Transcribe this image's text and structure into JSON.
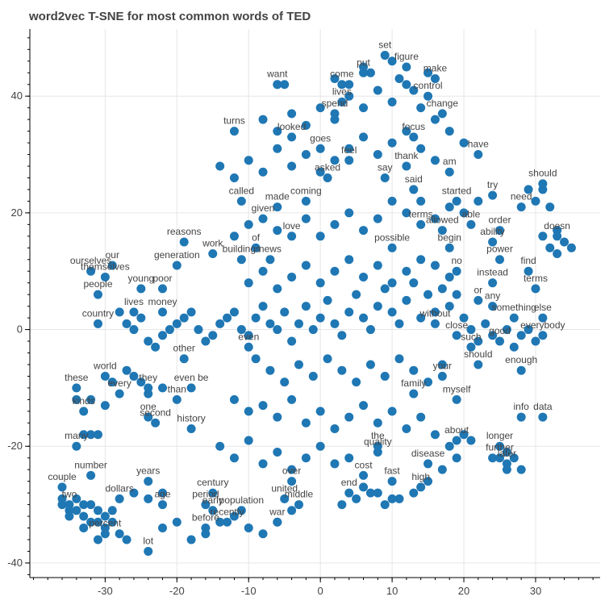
{
  "chart_data": {
    "type": "scatter",
    "title": "word2vec T-SNE for most common words of TED",
    "xlabel": "",
    "ylabel": "",
    "xlim": [
      -40.5,
      39
    ],
    "ylim": [
      -42.5,
      51.5
    ],
    "x_ticks": [
      -30,
      -20,
      -10,
      0,
      10,
      20,
      30
    ],
    "y_ticks": [
      -40,
      -20,
      0,
      20,
      40
    ],
    "grid": true,
    "marker_color": "#1f77b4",
    "label_color": "#444444",
    "background": "#ffffff",
    "labeled_points": [
      {
        "word": "set",
        "x": 9,
        "y": 47
      },
      {
        "word": "figure",
        "x": 12,
        "y": 45
      },
      {
        "word": "put",
        "x": 6,
        "y": 44
      },
      {
        "word": "make",
        "x": 16,
        "y": 43
      },
      {
        "word": "come",
        "x": 3,
        "y": 42
      },
      {
        "word": "want",
        "x": -6,
        "y": 42
      },
      {
        "word": "lives",
        "x": 3,
        "y": 39
      },
      {
        "word": "spend",
        "x": 2,
        "y": 37
      },
      {
        "word": "change",
        "x": 17,
        "y": 37
      },
      {
        "word": "control",
        "x": 15,
        "y": 40
      },
      {
        "word": "turns",
        "x": -12,
        "y": 34
      },
      {
        "word": "looked",
        "x": -4,
        "y": 33
      },
      {
        "word": "goes",
        "x": 0,
        "y": 31
      },
      {
        "word": "focus",
        "x": 13,
        "y": 33
      },
      {
        "word": "feel",
        "x": 4,
        "y": 29
      },
      {
        "word": "thank",
        "x": 12,
        "y": 28
      },
      {
        "word": "am",
        "x": 18,
        "y": 27
      },
      {
        "word": "have",
        "x": 22,
        "y": 30
      },
      {
        "word": "asked",
        "x": 1,
        "y": 26
      },
      {
        "word": "say",
        "x": 9,
        "y": 26
      },
      {
        "word": "said",
        "x": 13,
        "y": 24
      },
      {
        "word": "try",
        "x": 24,
        "y": 23
      },
      {
        "word": "started",
        "x": 19,
        "y": 22
      },
      {
        "word": "should",
        "x": 31,
        "y": 25
      },
      {
        "word": "called",
        "x": -11,
        "y": 22
      },
      {
        "word": "made",
        "x": -6,
        "y": 21
      },
      {
        "word": "coming",
        "x": -2,
        "y": 22
      },
      {
        "word": "given",
        "x": -8,
        "y": 19
      },
      {
        "word": "love",
        "x": -4,
        "y": 16
      },
      {
        "word": "terms",
        "x": 14,
        "y": 18
      },
      {
        "word": "allowed",
        "x": 17,
        "y": 17
      },
      {
        "word": "able",
        "x": 21,
        "y": 18
      },
      {
        "word": "order",
        "x": 25,
        "y": 17
      },
      {
        "word": "ability",
        "x": 24,
        "y": 15
      },
      {
        "word": "need",
        "x": 28,
        "y": 21
      },
      {
        "word": "doesn",
        "x": 33,
        "y": 16
      },
      {
        "word": "reasons",
        "x": -19,
        "y": 15
      },
      {
        "word": "work",
        "x": -15,
        "y": 13
      },
      {
        "word": "buildings",
        "x": -11,
        "y": 12
      },
      {
        "word": "news",
        "x": -7,
        "y": 12
      },
      {
        "word": "of",
        "x": -9,
        "y": 14
      },
      {
        "word": "possible",
        "x": 10,
        "y": 14
      },
      {
        "word": "begin",
        "x": 18,
        "y": 14
      },
      {
        "word": "power",
        "x": 25,
        "y": 12
      },
      {
        "word": "generation",
        "x": -20,
        "y": 11
      },
      {
        "word": "no",
        "x": 19,
        "y": 10
      },
      {
        "word": "find",
        "x": 29,
        "y": 10
      },
      {
        "word": "instead",
        "x": 24,
        "y": 8
      },
      {
        "word": "terms",
        "x": 30,
        "y": 7
      },
      {
        "word": "young",
        "x": -25,
        "y": 7
      },
      {
        "word": "poor",
        "x": -22,
        "y": 7
      },
      {
        "word": "our",
        "x": -29,
        "y": 11
      },
      {
        "word": "ourselves",
        "x": -32,
        "y": 10
      },
      {
        "word": "themselves",
        "x": -30,
        "y": 9
      },
      {
        "word": "people",
        "x": -31,
        "y": 6
      },
      {
        "word": "lives",
        "x": -26,
        "y": 3
      },
      {
        "word": "money",
        "x": -22,
        "y": 3
      },
      {
        "word": "or",
        "x": 22,
        "y": 5
      },
      {
        "word": "any",
        "x": 24,
        "y": 4
      },
      {
        "word": "something",
        "x": 27,
        "y": 2
      },
      {
        "word": "else",
        "x": 31,
        "y": 2
      },
      {
        "word": "without",
        "x": 16,
        "y": 1
      },
      {
        "word": "country",
        "x": -31,
        "y": 1
      },
      {
        "word": "close",
        "x": 19,
        "y": -1
      },
      {
        "word": "good",
        "x": 25,
        "y": -2
      },
      {
        "word": "everybody",
        "x": 31,
        "y": -1
      },
      {
        "word": "other",
        "x": -19,
        "y": -5
      },
      {
        "word": "even",
        "x": -10,
        "y": -3
      },
      {
        "word": "such",
        "x": 21,
        "y": -3
      },
      {
        "word": "should",
        "x": 22,
        "y": -6
      },
      {
        "word": "enough",
        "x": 28,
        "y": -7
      },
      {
        "word": "your",
        "x": 17,
        "y": -8
      },
      {
        "word": "world",
        "x": -30,
        "y": -8
      },
      {
        "word": "every",
        "x": -28,
        "y": -11
      },
      {
        "word": "they",
        "x": -24,
        "y": -10
      },
      {
        "word": "these",
        "x": -34,
        "y": -10
      },
      {
        "word": "even be",
        "x": -18,
        "y": -10
      },
      {
        "word": "than",
        "x": -20,
        "y": -12
      },
      {
        "word": "family",
        "x": 13,
        "y": -11
      },
      {
        "word": "myself",
        "x": 19,
        "y": -12
      },
      {
        "word": "info",
        "x": 28,
        "y": -15
      },
      {
        "word": "data",
        "x": 31,
        "y": -15
      },
      {
        "word": "kinds",
        "x": -33,
        "y": -14
      },
      {
        "word": "one",
        "x": -24,
        "y": -15
      },
      {
        "word": "second",
        "x": -23,
        "y": -16
      },
      {
        "word": "history",
        "x": -18,
        "y": -17
      },
      {
        "word": "quality",
        "x": 8,
        "y": -21
      },
      {
        "word": "the",
        "x": 8,
        "y": -20
      },
      {
        "word": "about",
        "x": 19,
        "y": -19
      },
      {
        "word": "longer",
        "x": 25,
        "y": -20
      },
      {
        "word": "further",
        "x": 25,
        "y": -22
      },
      {
        "word": "later",
        "x": 26,
        "y": -23
      },
      {
        "word": "disease",
        "x": 15,
        "y": -23
      },
      {
        "word": "many",
        "x": -34,
        "y": -20
      },
      {
        "word": "number",
        "x": -32,
        "y": -25
      },
      {
        "word": "century",
        "x": -15,
        "y": -28
      },
      {
        "word": "period",
        "x": -16,
        "y": -30
      },
      {
        "word": "end",
        "x": 4,
        "y": -28
      },
      {
        "word": "high",
        "x": 14,
        "y": -27
      },
      {
        "word": "fast",
        "x": 10,
        "y": -26
      },
      {
        "word": "cost",
        "x": 6,
        "y": -25
      },
      {
        "word": "over",
        "x": -4,
        "y": -26
      },
      {
        "word": "united",
        "x": -5,
        "y": -29
      },
      {
        "word": "war",
        "x": -6,
        "y": -33
      },
      {
        "word": "middle",
        "x": -3,
        "y": -30
      },
      {
        "word": "dollars",
        "x": -28,
        "y": -29
      },
      {
        "word": "years",
        "x": -24,
        "y": -26
      },
      {
        "word": "age",
        "x": -22,
        "y": -30
      },
      {
        "word": "early",
        "x": -15,
        "y": -31
      },
      {
        "word": "population",
        "x": -11,
        "y": -31
      },
      {
        "word": "recently",
        "x": -13,
        "y": -33
      },
      {
        "word": "before",
        "x": -16,
        "y": -34
      },
      {
        "word": "lot",
        "x": -24,
        "y": -38
      },
      {
        "word": "percent",
        "x": -30,
        "y": -35
      },
      {
        "word": "couple",
        "x": -36,
        "y": -27
      },
      {
        "word": "two",
        "x": -35,
        "y": -30
      }
    ],
    "unlabeled_points": [
      [
        -36,
        -29
      ],
      [
        -35,
        -31
      ],
      [
        -34,
        -31
      ],
      [
        -33,
        -32
      ],
      [
        -32,
        -33
      ],
      [
        -31,
        -33
      ],
      [
        -30,
        -34
      ],
      [
        -33,
        -30
      ],
      [
        -32,
        -30
      ],
      [
        -31,
        -31
      ],
      [
        -34,
        -29
      ],
      [
        -30,
        -32
      ],
      [
        -29,
        -33
      ],
      [
        -28,
        -35
      ],
      [
        -27,
        -36
      ],
      [
        -31,
        -36
      ],
      [
        -33,
        -34
      ],
      [
        -35,
        -32
      ],
      [
        -36,
        -30
      ],
      [
        -29,
        -31
      ],
      [
        -34,
        -12
      ],
      [
        -33,
        -18
      ],
      [
        -32,
        -18
      ],
      [
        -31,
        -18
      ],
      [
        -32,
        -12
      ],
      [
        -30,
        -13
      ],
      [
        -29,
        -9
      ],
      [
        -27,
        -7
      ],
      [
        -26,
        -8
      ],
      [
        -25,
        -9
      ],
      [
        -24,
        -11
      ],
      [
        -22,
        -10
      ],
      [
        -28,
        3
      ],
      [
        -27,
        1
      ],
      [
        -26,
        0
      ],
      [
        -25,
        2
      ],
      [
        -24,
        -2
      ],
      [
        -23,
        -3
      ],
      [
        -22,
        -1
      ],
      [
        -21,
        0
      ],
      [
        -20,
        1
      ],
      [
        -19,
        2
      ],
      [
        -18,
        3
      ],
      [
        -17,
        0
      ],
      [
        -16,
        -2
      ],
      [
        -15,
        -1
      ],
      [
        -14,
        1
      ],
      [
        -13,
        2
      ],
      [
        -12,
        3
      ],
      [
        -11,
        0
      ],
      [
        -10,
        -1
      ],
      [
        -9,
        2
      ],
      [
        -8,
        4
      ],
      [
        -7,
        1
      ],
      [
        -6,
        0
      ],
      [
        -5,
        3
      ],
      [
        -4,
        -2
      ],
      [
        -3,
        1
      ],
      [
        -2,
        4
      ],
      [
        -1,
        0
      ],
      [
        0,
        2
      ],
      [
        1,
        5
      ],
      [
        2,
        1
      ],
      [
        3,
        -1
      ],
      [
        4,
        3
      ],
      [
        5,
        6
      ],
      [
        6,
        2
      ],
      [
        7,
        0
      ],
      [
        8,
        4
      ],
      [
        9,
        7
      ],
      [
        10,
        3
      ],
      [
        11,
        1
      ],
      [
        12,
        5
      ],
      [
        13,
        8
      ],
      [
        14,
        2
      ],
      [
        15,
        6
      ],
      [
        16,
        3
      ],
      [
        17,
        7
      ],
      [
        18,
        4
      ],
      [
        19,
        6
      ],
      [
        20,
        2
      ],
      [
        21,
        0
      ],
      [
        22,
        -2
      ],
      [
        23,
        1
      ],
      [
        24,
        -1
      ],
      [
        26,
        0
      ],
      [
        27,
        -3
      ],
      [
        28,
        -1
      ],
      [
        29,
        0
      ],
      [
        30,
        -2
      ],
      [
        -9,
        -5
      ],
      [
        -7,
        -7
      ],
      [
        -5,
        -9
      ],
      [
        -3,
        -6
      ],
      [
        -1,
        -8
      ],
      [
        1,
        -5
      ],
      [
        3,
        -7
      ],
      [
        5,
        -9
      ],
      [
        7,
        -6
      ],
      [
        9,
        -8
      ],
      [
        11,
        -5
      ],
      [
        13,
        -7
      ],
      [
        15,
        -9
      ],
      [
        17,
        -6
      ],
      [
        -12,
        -12
      ],
      [
        -10,
        -14
      ],
      [
        -8,
        -13
      ],
      [
        -6,
        -15
      ],
      [
        -4,
        -12
      ],
      [
        -2,
        -16
      ],
      [
        0,
        -14
      ],
      [
        2,
        -17
      ],
      [
        4,
        -15
      ],
      [
        6,
        -13
      ],
      [
        8,
        -16
      ],
      [
        10,
        -14
      ],
      [
        12,
        -17
      ],
      [
        14,
        -15
      ],
      [
        16,
        -18
      ],
      [
        -14,
        -20
      ],
      [
        -12,
        -22
      ],
      [
        -10,
        -19
      ],
      [
        -8,
        -23
      ],
      [
        -6,
        -21
      ],
      [
        -4,
        -24
      ],
      [
        -2,
        -22
      ],
      [
        0,
        -20
      ],
      [
        2,
        -23
      ],
      [
        4,
        -22
      ],
      [
        6,
        -27
      ],
      [
        8,
        -28
      ],
      [
        10,
        -29
      ],
      [
        -10,
        8
      ],
      [
        -8,
        10
      ],
      [
        -6,
        7
      ],
      [
        -4,
        9
      ],
      [
        -2,
        11
      ],
      [
        0,
        8
      ],
      [
        2,
        10
      ],
      [
        4,
        12
      ],
      [
        6,
        9
      ],
      [
        8,
        11
      ],
      [
        10,
        8
      ],
      [
        12,
        10
      ],
      [
        14,
        12
      ],
      [
        16,
        11
      ],
      [
        18,
        9
      ],
      [
        -12,
        16
      ],
      [
        -10,
        18
      ],
      [
        -6,
        17
      ],
      [
        -2,
        19
      ],
      [
        0,
        16
      ],
      [
        2,
        18
      ],
      [
        4,
        20
      ],
      [
        6,
        17
      ],
      [
        8,
        19
      ],
      [
        10,
        22
      ],
      [
        12,
        20
      ],
      [
        14,
        22
      ],
      [
        16,
        19
      ],
      [
        18,
        21
      ],
      [
        20,
        20
      ],
      [
        22,
        22
      ],
      [
        -14,
        28
      ],
      [
        -12,
        26
      ],
      [
        -10,
        29
      ],
      [
        -8,
        27
      ],
      [
        -6,
        31
      ],
      [
        -4,
        28
      ],
      [
        -2,
        30
      ],
      [
        0,
        27
      ],
      [
        2,
        29
      ],
      [
        4,
        31
      ],
      [
        6,
        33
      ],
      [
        8,
        30
      ],
      [
        10,
        32
      ],
      [
        12,
        34
      ],
      [
        14,
        31
      ],
      [
        16,
        29
      ],
      [
        -8,
        36
      ],
      [
        -6,
        34
      ],
      [
        -4,
        37
      ],
      [
        -2,
        35
      ],
      [
        0,
        38
      ],
      [
        2,
        36
      ],
      [
        4,
        40
      ],
      [
        6,
        38
      ],
      [
        8,
        41
      ],
      [
        10,
        39
      ],
      [
        12,
        42
      ],
      [
        14,
        38
      ],
      [
        16,
        36
      ],
      [
        18,
        34
      ],
      [
        20,
        32
      ],
      [
        -5,
        42
      ],
      [
        -6,
        42
      ],
      [
        2,
        43
      ],
      [
        4,
        42
      ],
      [
        6,
        45
      ],
      [
        7,
        44
      ],
      [
        10,
        46
      ],
      [
        11,
        43
      ],
      [
        13,
        41
      ],
      [
        15,
        44
      ],
      [
        29,
        24
      ],
      [
        30,
        22
      ],
      [
        31,
        24
      ],
      [
        32,
        21
      ],
      [
        33,
        17
      ],
      [
        34,
        15
      ],
      [
        35,
        14
      ],
      [
        32,
        14
      ],
      [
        33,
        13
      ],
      [
        31,
        16
      ],
      [
        26,
        -21
      ],
      [
        27,
        -22
      ],
      [
        28,
        -24
      ],
      [
        26,
        -24
      ],
      [
        24,
        -22
      ],
      [
        -18,
        -36
      ],
      [
        -16,
        -35
      ],
      [
        -14,
        -33
      ],
      [
        -12,
        -32
      ],
      [
        -10,
        -34
      ],
      [
        -8,
        -35
      ],
      [
        -6,
        -33
      ],
      [
        -4,
        -31
      ],
      [
        -20,
        -33
      ],
      [
        -22,
        -34
      ],
      [
        -26,
        -28
      ],
      [
        -24,
        -29
      ],
      [
        -22,
        -28
      ],
      [
        3,
        -30
      ],
      [
        5,
        -29
      ],
      [
        7,
        -28
      ],
      [
        9,
        -30
      ],
      [
        11,
        -29
      ],
      [
        13,
        -28
      ],
      [
        15,
        -26
      ],
      [
        18,
        -20
      ],
      [
        20,
        -18
      ],
      [
        19,
        -22
      ],
      [
        21,
        -19
      ],
      [
        17,
        -24
      ]
    ]
  }
}
